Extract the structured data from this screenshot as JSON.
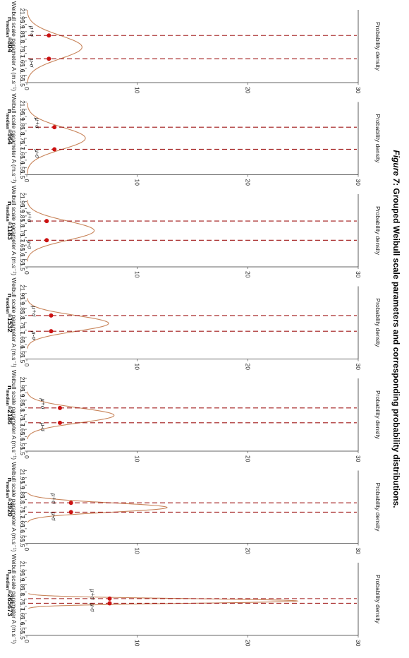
{
  "figure": {
    "caption_prefix": "Figure 7",
    "caption_text": ": Grouped Weibull scale parameters and corresponding probability distributions."
  },
  "chart_data": {
    "type": "line",
    "orientation": "rotated 90° clockwise; x axis runs top-to-bottom, density axis left-to-right",
    "xlabel": "Weibull scale parameter A (m.s⁻¹)",
    "ylabel": "Probability density",
    "xlim": [
      1.5,
      2
    ],
    "xticks": [
      2,
      1.95,
      1.9,
      1.85,
      1.8,
      1.75,
      1.7,
      1.65,
      1.6,
      1.55,
      1.5
    ],
    "ylim": [
      0,
      30
    ],
    "yticks": [
      0,
      10,
      20,
      30
    ],
    "colors": {
      "curve": "#c8845a",
      "marker": "#cc1111",
      "sigma_line": "#a01818",
      "axis": "#333333"
    },
    "panels": [
      {
        "n_label_prefix": "n",
        "n_label_sub": "median",
        "n_label_value": "=804",
        "mu": 1.744,
        "sigma": 0.08,
        "peak": 5.0,
        "mu_plus_sigma": 1.824,
        "mu_minus_sigma": 1.664,
        "marker_density": 2.0,
        "mu_plus_label": "μ+σ",
        "mu_minus_label": "μ-σ"
      },
      {
        "n_label_prefix": "n",
        "n_label_sub": "median",
        "n_label_value": "=964",
        "mu": 1.751,
        "sigma": 0.076,
        "peak": 5.3,
        "mu_plus_sigma": 1.827,
        "mu_minus_sigma": 1.675,
        "marker_density": 2.5,
        "mu_plus_label": "μ+σ",
        "mu_minus_label": "μ-σ"
      },
      {
        "n_label_prefix": "n",
        "n_label_sub": "median",
        "n_label_value": "=1183",
        "mu": 1.749,
        "sigma": 0.066,
        "peak": 6.1,
        "mu_plus_sigma": 1.815,
        "mu_minus_sigma": 1.683,
        "marker_density": 1.8,
        "mu_plus_label": "μ+σ",
        "mu_minus_label": "μ-σ"
      },
      {
        "n_label_prefix": "n",
        "n_label_sub": "median",
        "n_label_value": "=1532",
        "mu": 1.745,
        "sigma": 0.054,
        "peak": 7.4,
        "mu_plus_sigma": 1.799,
        "mu_minus_sigma": 1.691,
        "marker_density": 2.2,
        "mu_plus_label": "μ+σ",
        "mu_minus_label": "μ-σ"
      },
      {
        "n_label_prefix": "n",
        "n_label_sub": "median",
        "n_label_value": "=2186",
        "mu": 1.746,
        "sigma": 0.051,
        "peak": 7.9,
        "mu_plus_sigma": 1.797,
        "mu_minus_sigma": 1.695,
        "marker_density": 3.0,
        "mu_plus_label": "μ+σ",
        "mu_minus_label": "μ-σ"
      },
      {
        "n_label_prefix": "n",
        "n_label_sub": "median",
        "n_label_value": "=3920",
        "mu": 1.746,
        "sigma": 0.032,
        "peak": 12.7,
        "mu_plus_sigma": 1.778,
        "mu_minus_sigma": 1.714,
        "marker_density": 4.0,
        "mu_plus_label": "μ+σ",
        "mu_minus_label": "μ-σ"
      },
      {
        "n_label_prefix": "n",
        "n_label_sub": "median",
        "n_label_value": "=265673",
        "mu": 1.737,
        "sigma": 0.016,
        "peak": 24.5,
        "mu_plus_sigma": 1.753,
        "mu_minus_sigma": 1.721,
        "marker_density": 7.5,
        "mu_plus_label": "μ+σ",
        "mu_minus_label": "μ-σ"
      }
    ]
  }
}
